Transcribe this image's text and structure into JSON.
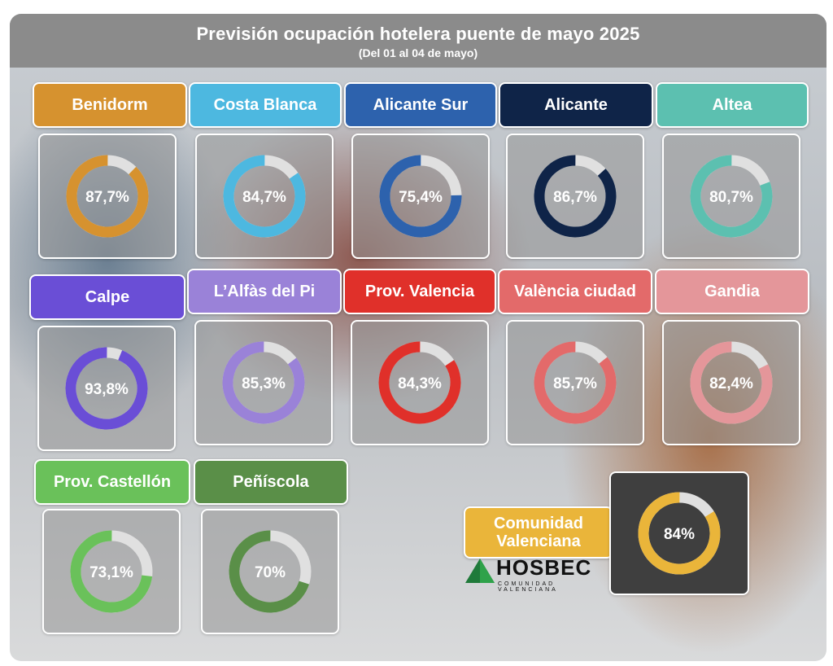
{
  "header": {
    "title": "Previsión ocupación hotelera puente de mayo 2025",
    "subtitle": "(Del 01 al 04 de mayo)"
  },
  "chart_data": {
    "type": "donut",
    "title": "Previsión ocupación hotelera puente de mayo 2025",
    "subtitle": "(Del 01 al 04 de mayo)",
    "categories": [
      "Benidorm",
      "Costa Blanca",
      "Alicante Sur",
      "Alicante",
      "Altea",
      "Calpe",
      "L’Alfàs del Pi",
      "Prov. Valencia",
      "València ciudad",
      "Gandia",
      "Prov. Castellón",
      "Peñíscola",
      "Comunidad Valenciana"
    ],
    "values": [
      87.7,
      84.7,
      75.4,
      86.7,
      80.7,
      93.8,
      85.3,
      84.3,
      85.7,
      82.4,
      73.1,
      70,
      84
    ],
    "value_labels": [
      "87,7%",
      "84,7%",
      "75,4%",
      "86,7%",
      "80,7%",
      "93,8%",
      "85,3%",
      "84,3%",
      "85,7%",
      "82,4%",
      "73,1%",
      "70%",
      "84%"
    ],
    "colors": [
      "#d6922f",
      "#4db8e0",
      "#2d62ad",
      "#0f2448",
      "#5cc0b0",
      "#6a4ed6",
      "#9a82d8",
      "#e0302a",
      "#e36a6a",
      "#e4969a",
      "#6ac15a",
      "#5a8f48",
      "#eab53a"
    ],
    "remainder_color": "#e0e0e0",
    "unit": "%"
  },
  "logo": {
    "name": "HOSBEC",
    "sub": "COMUNIDAD VALENCIANA"
  }
}
